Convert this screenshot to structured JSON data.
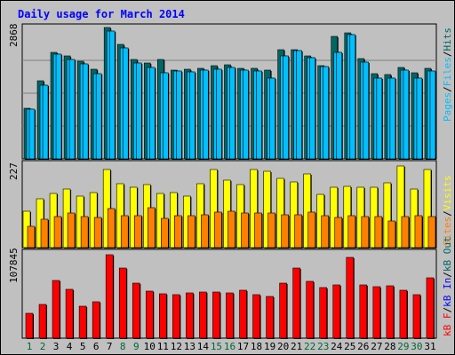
{
  "title": "Daily usage for March 2014",
  "colors": {
    "background": "#c0c0c0",
    "plot_bg": "#c0c0c0",
    "title": "#0000ff",
    "hits": "#006666",
    "files": "#00c0ff",
    "pages": "#00c0ff",
    "visits": "#ffff00",
    "sites": "#ff8000",
    "kb": "#ff0000",
    "weekday_label": "#000000",
    "weekend_label": "#006633",
    "separator": "#000000"
  },
  "chart_data": [
    {
      "type": "bar",
      "panel": "top",
      "ymax_label": "2868",
      "ylim": [
        0,
        2868
      ],
      "categories": [
        "1",
        "2",
        "3",
        "4",
        "5",
        "6",
        "7",
        "8",
        "9",
        "10",
        "11",
        "12",
        "13",
        "14",
        "15",
        "16",
        "17",
        "18",
        "19",
        "20",
        "21",
        "22",
        "23",
        "24",
        "25",
        "26",
        "27",
        "28",
        "29",
        "30",
        "31"
      ],
      "series": [
        {
          "name": "Hits",
          "values": [
            1100,
            1700,
            2320,
            2250,
            2130,
            1950,
            2868,
            2500,
            2180,
            2100,
            2180,
            1940,
            1950,
            1970,
            2030,
            2050,
            1980,
            1970,
            1930,
            2380,
            2390,
            2240,
            2030,
            2680,
            2760,
            2190,
            1870,
            1850,
            1990,
            1880,
            1980
          ]
        },
        {
          "name": "Files",
          "values": [
            1080,
            1600,
            2290,
            2170,
            2070,
            1860,
            2800,
            2430,
            2090,
            1990,
            1880,
            1920,
            1890,
            1930,
            1950,
            1990,
            1940,
            1920,
            1770,
            2240,
            2370,
            2200,
            2010,
            2320,
            2720,
            2120,
            1770,
            1760,
            1930,
            1770,
            1920
          ]
        },
        {
          "name": "Pages",
          "values": [
            1080,
            1600,
            2290,
            2170,
            2070,
            1860,
            2800,
            2430,
            2090,
            1990,
            1880,
            1920,
            1890,
            1930,
            1950,
            1990,
            1940,
            1920,
            1770,
            2240,
            2370,
            2200,
            2010,
            2320,
            2720,
            2120,
            1770,
            1760,
            1930,
            1770,
            1920
          ]
        }
      ],
      "legend": [
        "Pages",
        "Files",
        "Hits"
      ]
    },
    {
      "type": "bar",
      "panel": "middle",
      "ymax_label": "227",
      "ylim": [
        0,
        227
      ],
      "categories": [
        "1",
        "2",
        "3",
        "4",
        "5",
        "6",
        "7",
        "8",
        "9",
        "10",
        "11",
        "12",
        "13",
        "14",
        "15",
        "16",
        "17",
        "18",
        "19",
        "20",
        "21",
        "22",
        "23",
        "24",
        "25",
        "26",
        "27",
        "28",
        "29",
        "30",
        "31"
      ],
      "series": [
        {
          "name": "Visits",
          "values": [
            102,
            135,
            150,
            163,
            144,
            152,
            217,
            178,
            169,
            176,
            150,
            152,
            144,
            177,
            217,
            187,
            175,
            217,
            213,
            193,
            183,
            206,
            148,
            168,
            170,
            168,
            168,
            180,
            227,
            163,
            217
          ]
        },
        {
          "name": "Sites",
          "values": [
            58,
            78,
            86,
            95,
            87,
            85,
            108,
            90,
            88,
            110,
            81,
            90,
            89,
            92,
            98,
            100,
            96,
            95,
            96,
            91,
            91,
            98,
            88,
            85,
            90,
            86,
            87,
            75,
            87,
            90,
            87
          ]
        }
      ],
      "legend": [
        "Sites",
        "Visits"
      ]
    },
    {
      "type": "bar",
      "panel": "bottom",
      "ymax_label": "107845",
      "ylim": [
        0,
        107845
      ],
      "categories": [
        "1",
        "2",
        "3",
        "4",
        "5",
        "6",
        "7",
        "8",
        "9",
        "10",
        "11",
        "12",
        "13",
        "14",
        "15",
        "16",
        "17",
        "18",
        "19",
        "20",
        "21",
        "22",
        "23",
        "24",
        "25",
        "26",
        "27",
        "28",
        "29",
        "30",
        "31"
      ],
      "series": [
        {
          "name": "KBytes",
          "values": [
            32000,
            44000,
            75000,
            63000,
            41000,
            47000,
            107845,
            91000,
            71000,
            61000,
            57000,
            56000,
            59000,
            60000,
            60000,
            59000,
            62000,
            56000,
            54000,
            71000,
            91000,
            74000,
            65000,
            69000,
            104000,
            69000,
            66000,
            68000,
            62000,
            56000,
            78000
          ]
        }
      ],
      "legend": [
        "kB F",
        "kB In",
        "kB Out"
      ]
    }
  ],
  "x_labels": [
    {
      "text": "1",
      "weekend": true
    },
    {
      "text": "2",
      "weekend": true
    },
    {
      "text": "3",
      "weekend": false
    },
    {
      "text": "4",
      "weekend": false
    },
    {
      "text": "5",
      "weekend": false
    },
    {
      "text": "6",
      "weekend": false
    },
    {
      "text": "7",
      "weekend": false
    },
    {
      "text": "8",
      "weekend": true
    },
    {
      "text": "9",
      "weekend": true
    },
    {
      "text": "10",
      "weekend": false
    },
    {
      "text": "11",
      "weekend": false
    },
    {
      "text": "12",
      "weekend": false
    },
    {
      "text": "13",
      "weekend": false
    },
    {
      "text": "14",
      "weekend": false
    },
    {
      "text": "15",
      "weekend": true
    },
    {
      "text": "16",
      "weekend": true
    },
    {
      "text": "17",
      "weekend": false
    },
    {
      "text": "18",
      "weekend": false
    },
    {
      "text": "19",
      "weekend": false
    },
    {
      "text": "20",
      "weekend": false
    },
    {
      "text": "21",
      "weekend": false
    },
    {
      "text": "22",
      "weekend": true
    },
    {
      "text": "23",
      "weekend": true
    },
    {
      "text": "24",
      "weekend": false
    },
    {
      "text": "25",
      "weekend": false
    },
    {
      "text": "26",
      "weekend": false
    },
    {
      "text": "27",
      "weekend": false
    },
    {
      "text": "28",
      "weekend": false
    },
    {
      "text": "29",
      "weekend": true
    },
    {
      "text": "30",
      "weekend": true
    },
    {
      "text": "31",
      "weekend": false
    }
  ]
}
